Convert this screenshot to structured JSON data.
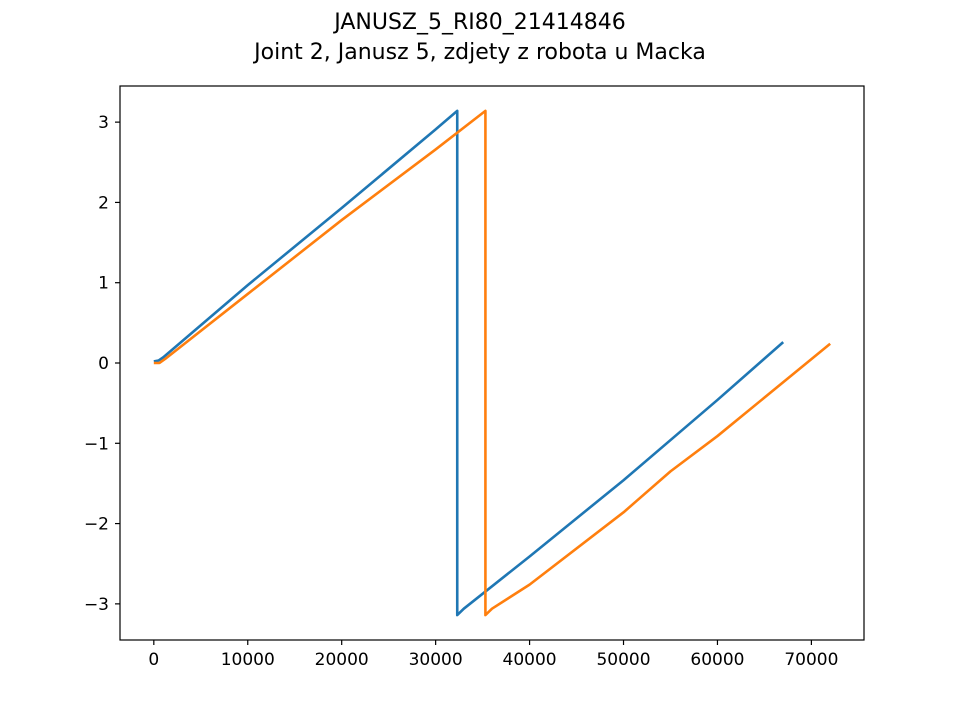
{
  "chart_data": {
    "type": "line",
    "title": "JANUSZ_5_RI80_21414846",
    "subtitle": "Joint 2, Janusz 5, zdjety z robota u Macka",
    "xlabel": "",
    "ylabel": "",
    "xlim": [
      -3600,
      75600
    ],
    "ylim": [
      -3.45,
      3.45
    ],
    "xticks": [
      0,
      10000,
      20000,
      30000,
      40000,
      50000,
      60000,
      70000
    ],
    "xtick_labels": [
      "0",
      "10000",
      "20000",
      "30000",
      "40000",
      "50000",
      "60000",
      "70000"
    ],
    "yticks": [
      -3,
      -2,
      -1,
      0,
      1,
      2,
      3
    ],
    "ytick_labels": [
      "−3",
      "−2",
      "−1",
      "0",
      "1",
      "2",
      "3"
    ],
    "grid": false,
    "legend": false,
    "series": [
      {
        "color": "#1f77b4",
        "x": [
          0,
          500,
          1000,
          10000,
          20000,
          30000,
          32300,
          32300,
          33000,
          40000,
          50000,
          60000,
          67000
        ],
        "y": [
          0.02,
          0.03,
          0.07,
          0.97,
          1.93,
          2.91,
          3.14,
          -3.14,
          -3.06,
          -2.41,
          -1.46,
          -0.46,
          0.26
        ]
      },
      {
        "color": "#ff7f0e",
        "x": [
          0,
          600,
          1200,
          10000,
          20000,
          30000,
          35300,
          35300,
          36000,
          40000,
          50000,
          55000,
          60000,
          72000
        ],
        "y": [
          0.0,
          0.0,
          0.05,
          0.86,
          1.78,
          2.66,
          3.14,
          -3.14,
          -3.06,
          -2.76,
          -1.86,
          -1.35,
          -0.91,
          0.24
        ]
      }
    ]
  }
}
